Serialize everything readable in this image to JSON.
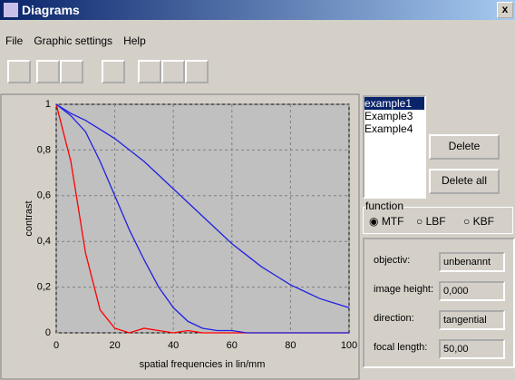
{
  "window": {
    "title": "Diagrams",
    "close": "x"
  },
  "menu": [
    "File",
    "Graphic settings",
    "Help"
  ],
  "chart_data": {
    "type": "line",
    "xlabel": "spatial frequencies in lin/mm",
    "ylabel": "contrast",
    "x": [
      0,
      5,
      10,
      15,
      20,
      25,
      30,
      35,
      40,
      45,
      50,
      55,
      60,
      65,
      70,
      75,
      80,
      85,
      90,
      95,
      100
    ],
    "series": [
      {
        "color": "#ff0000",
        "values": [
          1,
          0.75,
          0.35,
          0.1,
          0.02,
          0,
          0.02,
          0.01,
          0,
          0.01,
          0,
          0,
          0,
          0,
          0,
          0,
          0,
          0,
          0,
          0,
          0
        ]
      },
      {
        "color": "#2020e0",
        "values": [
          1,
          0.95,
          0.88,
          0.75,
          0.6,
          0.45,
          0.32,
          0.2,
          0.11,
          0.05,
          0.02,
          0.01,
          0.01,
          0,
          0,
          0,
          0,
          0,
          0,
          0,
          0
        ]
      },
      {
        "color": "#2020e0",
        "values": [
          1,
          0.96,
          0.93,
          0.89,
          0.85,
          0.8,
          0.75,
          0.69,
          0.63,
          0.57,
          0.51,
          0.45,
          0.39,
          0.34,
          0.29,
          0.25,
          0.21,
          0.18,
          0.15,
          0.13,
          0.11
        ]
      }
    ],
    "xlim": [
      0,
      100
    ],
    "xticks": [
      0,
      20,
      40,
      60,
      80,
      100
    ],
    "ylim": [
      0,
      1
    ],
    "yticks": [
      0,
      {
        "value": 0.2,
        "label": "0,2"
      },
      {
        "value": 0.4,
        "label": "0,4"
      },
      {
        "value": 0.6,
        "label": "0,6"
      },
      {
        "value": 0.8,
        "label": "0,8"
      },
      1
    ],
    "grid": true
  },
  "list": [
    "example1",
    "Example3",
    "Example4"
  ],
  "buttons": [
    "Delete",
    "Delete all"
  ],
  "function": {
    "title": "function",
    "options": [
      "MTF",
      "LBF",
      "KBF"
    ]
  },
  "fields": [
    {
      "label": "objectiv:",
      "value": "unbenannt"
    },
    {
      "label": "image height:",
      "value": "0,000"
    },
    {
      "label": "direction:",
      "value": "tangential"
    },
    {
      "label": "focal length:",
      "value": "50,00"
    }
  ]
}
